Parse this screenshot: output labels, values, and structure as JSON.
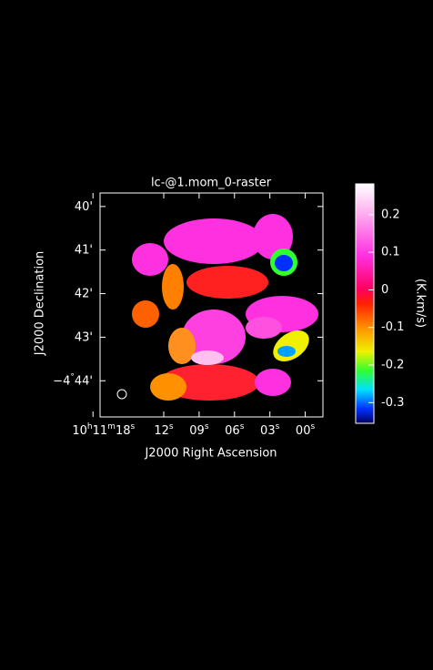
{
  "chart_data": {
    "type": "image",
    "title": "lc-@1.mom_0-raster",
    "x_label": "J2000 Right Ascension",
    "y_label": "J2000 Declination",
    "colorbar_label": "(K.km/s)",
    "xlim": [
      17.4,
      -1.5
    ],
    "xticks": [
      {
        "value": 18,
        "label": "10h11m18s"
      },
      {
        "value": 12,
        "label": "12s"
      },
      {
        "value": 9,
        "label": "09s"
      },
      {
        "value": 6,
        "label": "06s"
      },
      {
        "value": 3,
        "label": "03s"
      },
      {
        "value": 0,
        "label": "00s"
      }
    ],
    "ylim": [
      39.69,
      44.83
    ],
    "yticks": [
      {
        "value": 40,
        "label": "40'"
      },
      {
        "value": 41,
        "label": "41'"
      },
      {
        "value": 42,
        "label": "42'"
      },
      {
        "value": 43,
        "label": "43'"
      },
      {
        "value": 44,
        "label": "−4°44'"
      }
    ],
    "clim": [
      -0.355,
      0.282
    ],
    "cticks": [
      0.2,
      0.1,
      0,
      -0.1,
      -0.2,
      -0.3
    ]
  }
}
